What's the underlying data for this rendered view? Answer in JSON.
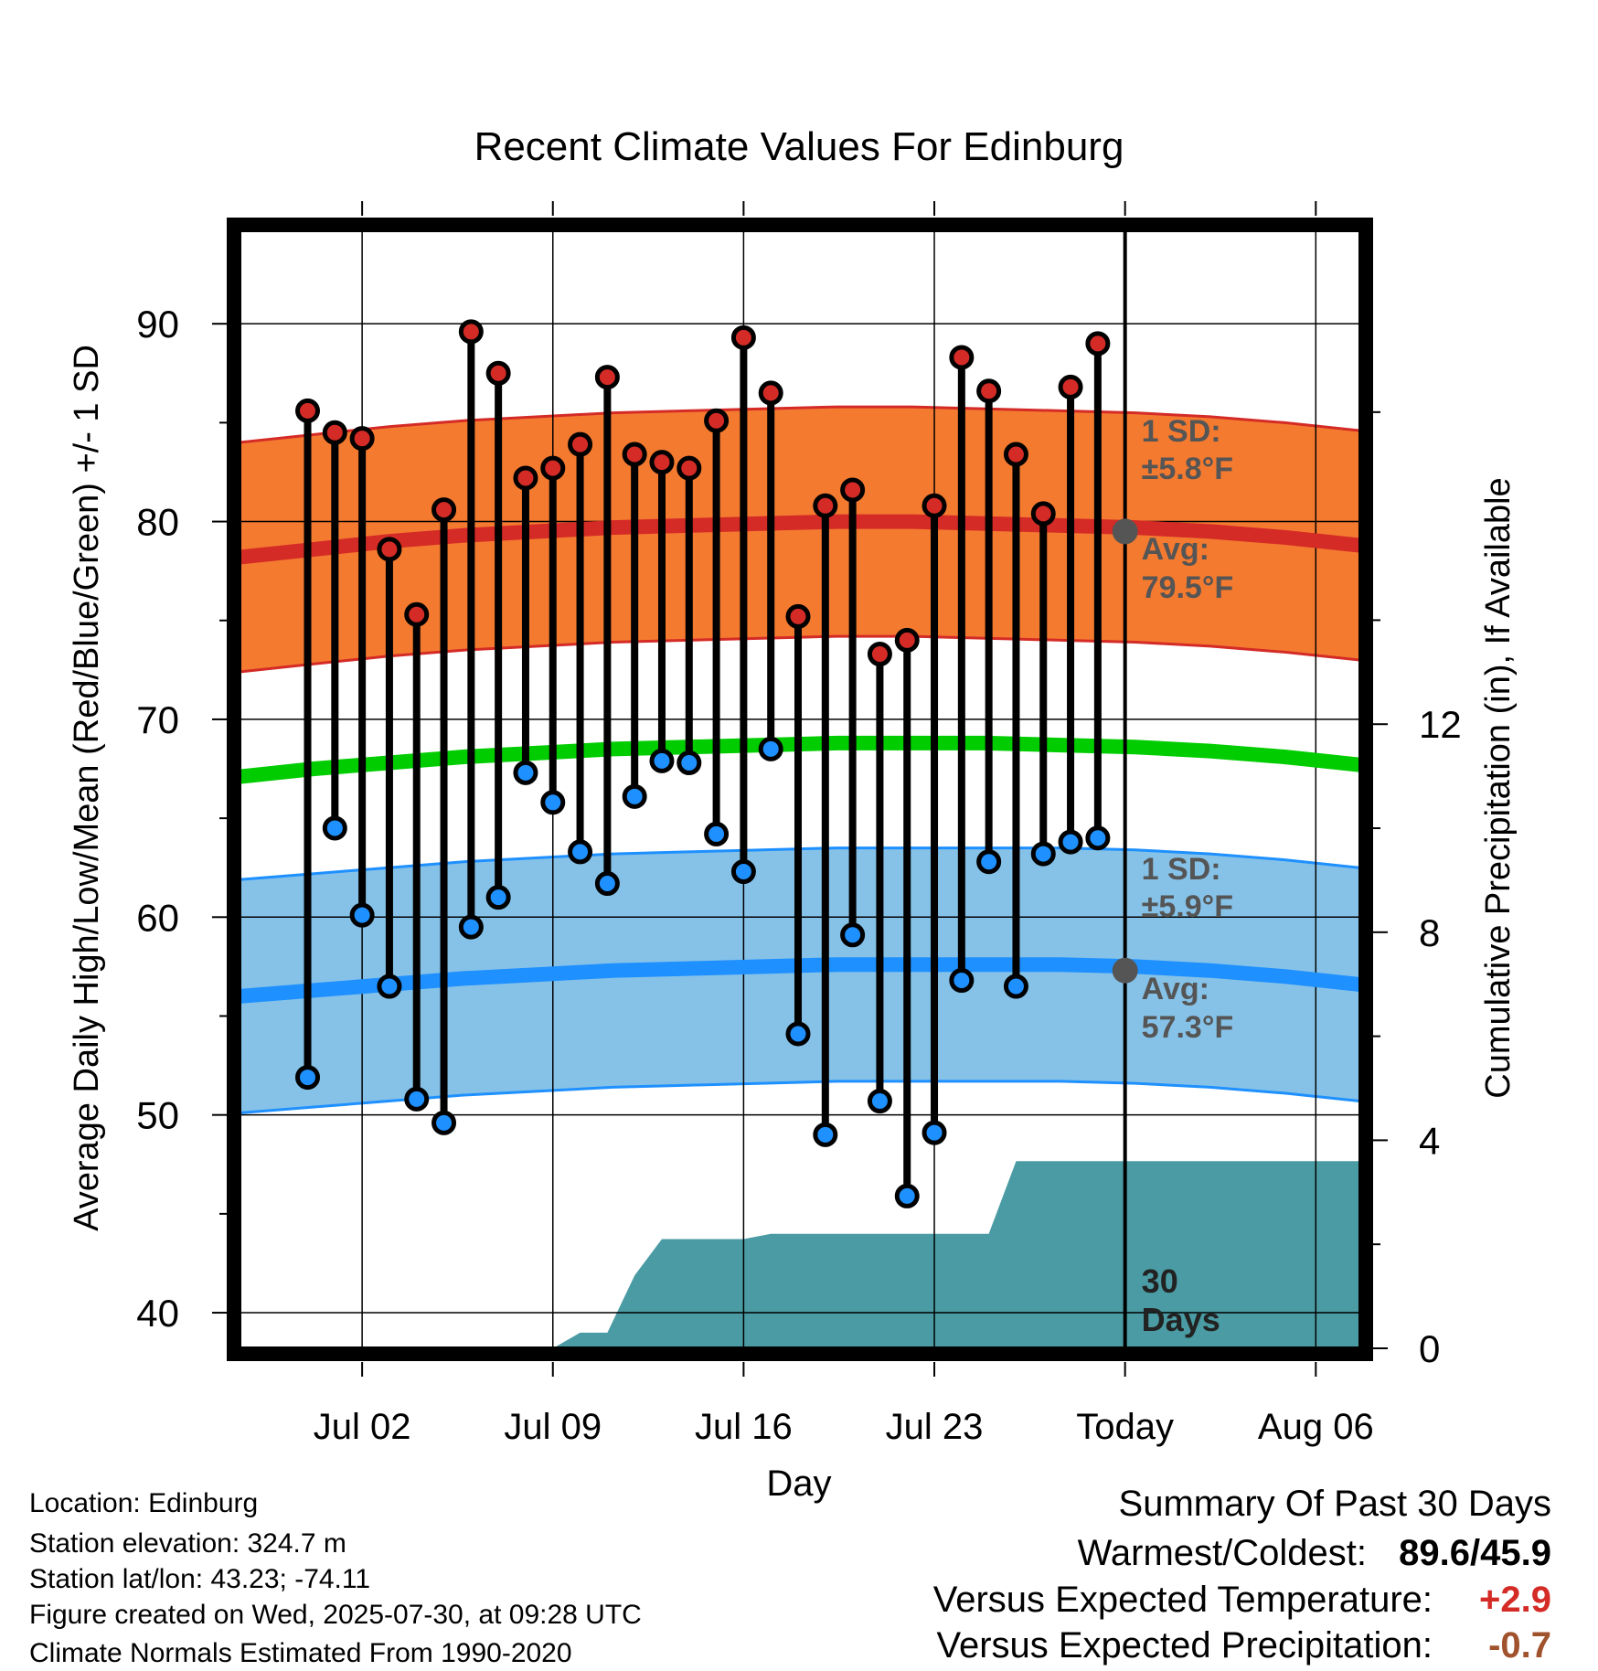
{
  "chart_data": {
    "type": "line",
    "title": "Recent Climate Values For Edinburg",
    "xlabel": "Day",
    "ylabel": "Average Daily High/Low/Mean (Red/Blue/Green) +/- 1 SD",
    "y2label": "Cumulative Precipitation (in), If Available",
    "ylim": [
      38.2,
      95
    ],
    "y2lim": [
      0,
      21.6
    ],
    "yticks": [
      40,
      50,
      60,
      70,
      80,
      90
    ],
    "y2ticks": [
      0,
      4,
      8,
      12
    ],
    "x_range_days": [
      -32.5,
      8.6
    ],
    "xtick_days": [
      -28,
      -21,
      -14,
      -7,
      0,
      7
    ],
    "xtick_labels": [
      "Jul 02",
      "Jul 09",
      "Jul 16",
      "Jul 23",
      "Today",
      "Aug 06"
    ],
    "grid": true,
    "days_offset": [
      -32,
      -31,
      -30,
      -29,
      -28,
      -27,
      -26,
      -25,
      -24,
      -23,
      -22,
      -21,
      -20,
      -19,
      -18,
      -17,
      -16,
      -15,
      -14,
      -13,
      -12,
      -11,
      -10,
      -9,
      -8,
      -7,
      -6,
      -5,
      -4,
      -3,
      -2,
      -1
    ],
    "highs": [
      85.6,
      84.5,
      84.2,
      78.6,
      75.3,
      80.6,
      89.6,
      87.5,
      82.2,
      82.7,
      83.9,
      87.3,
      83.4,
      83.0,
      82.7,
      85.1,
      89.3,
      86.5,
      75.2,
      80.8,
      81.6,
      73.3,
      74.0,
      80.8,
      88.3,
      86.6,
      83.4,
      80.4,
      86.8,
      89.0
    ],
    "lows": [
      51.9,
      64.5,
      60.1,
      56.5,
      50.8,
      49.6,
      59.5,
      61.0,
      67.3,
      65.8,
      63.3,
      61.7,
      66.1,
      67.9,
      67.8,
      64.2,
      62.3,
      68.5,
      54.1,
      49.0,
      59.1,
      50.7,
      45.9,
      49.1,
      56.8,
      62.8,
      56.5,
      63.2,
      63.8,
      64.0
    ],
    "obs_start_day": -30,
    "normal_high": [
      78.2,
      78.6,
      79.0,
      79.3,
      79.5,
      79.7,
      79.8,
      79.9,
      80.0,
      80.0,
      79.9,
      79.8,
      79.7,
      79.5,
      79.2,
      78.8
    ],
    "normal_low": [
      56.0,
      56.3,
      56.6,
      56.9,
      57.1,
      57.3,
      57.4,
      57.5,
      57.6,
      57.6,
      57.6,
      57.6,
      57.5,
      57.3,
      57.0,
      56.6
    ],
    "normal_mean": [
      67.1,
      67.5,
      67.8,
      68.1,
      68.3,
      68.5,
      68.6,
      68.7,
      68.8,
      68.8,
      68.8,
      68.7,
      68.6,
      68.4,
      68.1,
      67.7
    ],
    "normal_day_step": 2.74,
    "high_sd": 5.8,
    "low_sd": 5.9,
    "precip_cumulative": {
      "days": [
        -30,
        -21,
        -20,
        -19,
        -18,
        -17,
        -16,
        -15,
        -14,
        -13,
        -12,
        -11,
        -10,
        -9,
        -8,
        -7,
        -6,
        -5,
        -4,
        -3,
        -2,
        -1,
        8.6
      ],
      "values": [
        0,
        0,
        0.3,
        0.3,
        1.4,
        2.1,
        2.1,
        2.1,
        2.1,
        2.2,
        2.2,
        2.2,
        2.2,
        2.2,
        2.2,
        2.2,
        2.2,
        2.2,
        3.6,
        3.6,
        3.6,
        3.6,
        3.6
      ]
    },
    "annotations": {
      "high_sd_label": "1 SD:",
      "high_sd_value": "±5.8°F",
      "high_avg_label": "Avg:",
      "high_avg_value": "79.5°F",
      "low_sd_label": "1 SD:",
      "low_sd_value": "±5.9°F",
      "low_avg_label": "Avg:",
      "low_avg_value": "57.3°F",
      "today_high_avg": 79.5,
      "today_low_avg": 57.3,
      "days_label_1": "30",
      "days_label_2": "Days"
    },
    "colors": {
      "high_band": "#f47a30",
      "high_line": "#d42b26",
      "low_band": "#86c2e8",
      "low_line": "#1e90ff",
      "mean_line": "#00cc00",
      "precip": "#4a9ba3",
      "high_marker": "#d42b26",
      "low_marker": "#1e90ff",
      "annotation": "#555555"
    }
  },
  "info": {
    "location": "Location: Edinburg",
    "elevation": "Station elevation: 324.7 m",
    "latlon": "Station lat/lon: 43.23; -74.11",
    "created": "Figure created on Wed, 2025-07-30, at 09:28 UTC",
    "normals": "Climate Normals Estimated From 1990-2020"
  },
  "summary": {
    "title": "Summary Of Past 30 Days",
    "warmest_label": "Warmest/Coldest:",
    "warmest_value": "89.6/45.9",
    "temp_label": "Versus Expected Temperature:",
    "temp_value": "+2.9",
    "temp_color": "#d42b26",
    "precip_label": "Versus Expected Precipitation:",
    "precip_value": "-0.7",
    "precip_color": "#a0522d"
  }
}
